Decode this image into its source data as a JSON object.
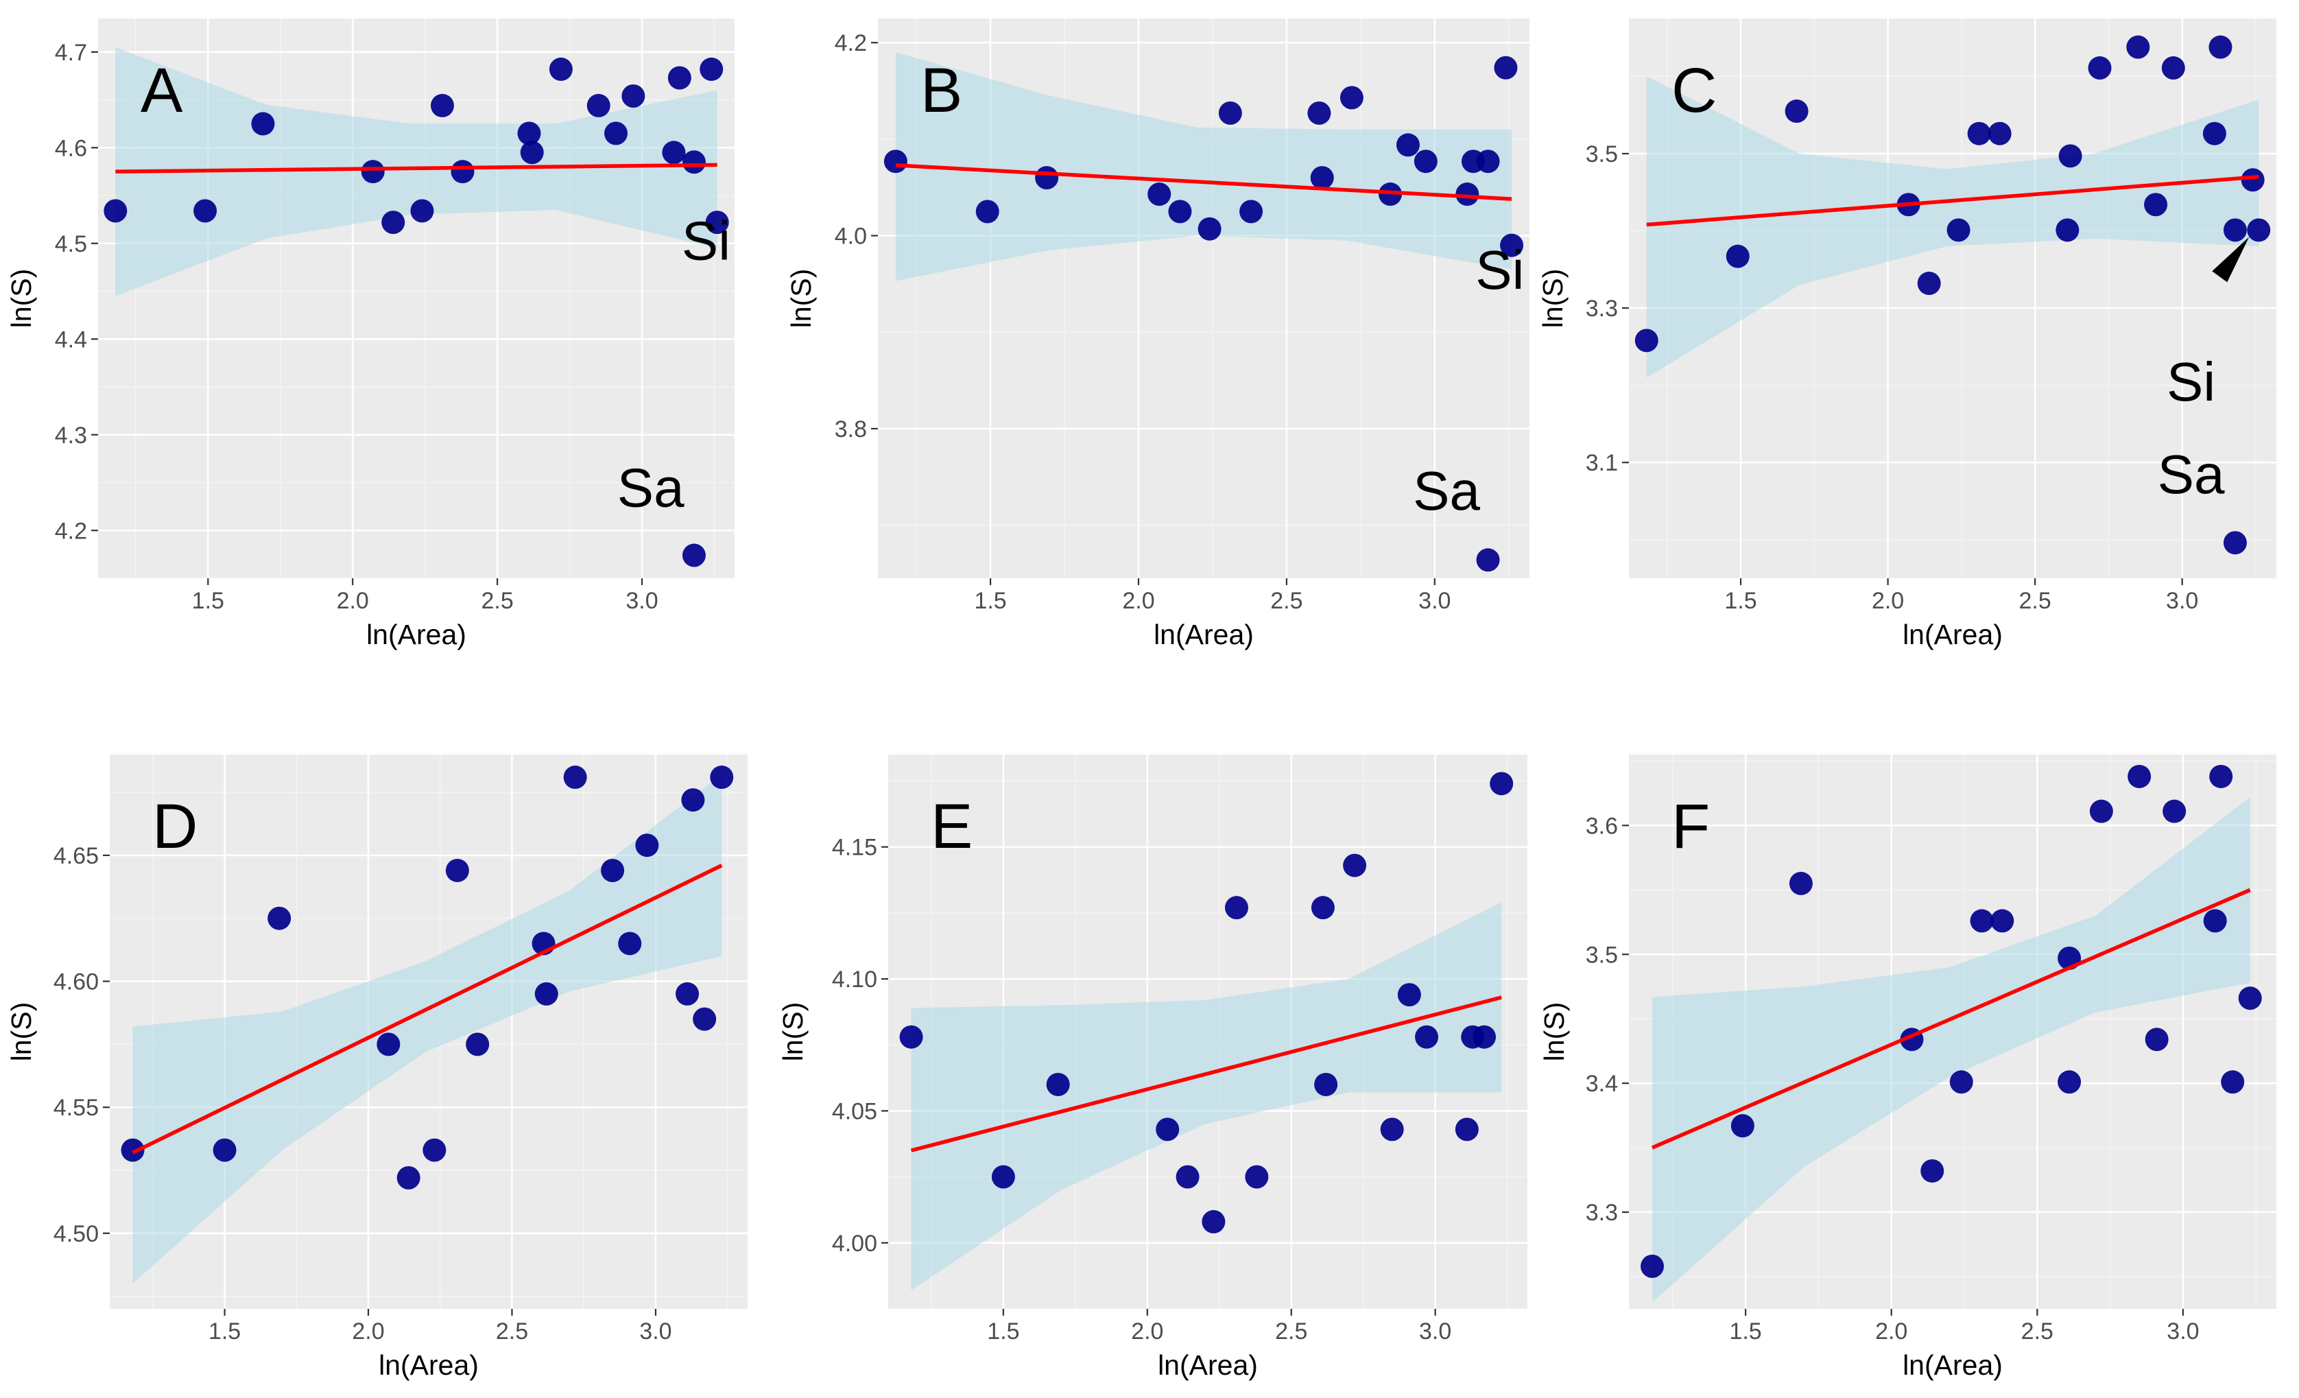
{
  "chart_data": [
    {
      "type": "scatter",
      "panel_label": "A",
      "xlabel": "ln(Area)",
      "ylabel": "ln(S)",
      "xlim": [
        1.12,
        3.32
      ],
      "ylim": [
        4.15,
        4.735
      ],
      "xticks": [
        "1.5",
        "2.0",
        "2.5",
        "3.0"
      ],
      "yticks": [
        "4.2",
        "4.3",
        "4.4",
        "4.5",
        "4.6",
        "4.7"
      ],
      "x": [
        1.18,
        1.49,
        1.69,
        2.07,
        2.14,
        2.24,
        2.31,
        2.38,
        2.61,
        2.62,
        2.72,
        2.85,
        2.91,
        2.97,
        3.11,
        3.13,
        3.18,
        3.24,
        3.26,
        3.18
      ],
      "y": [
        4.534,
        4.534,
        4.625,
        4.575,
        4.522,
        4.534,
        4.644,
        4.575,
        4.615,
        4.595,
        4.682,
        4.644,
        4.615,
        4.654,
        4.595,
        4.673,
        4.585,
        4.682,
        4.522,
        4.174
      ],
      "fit": {
        "x": [
          1.18,
          3.26
        ],
        "y": [
          4.575,
          4.582
        ]
      },
      "band": {
        "x": [
          1.18,
          1.7,
          2.2,
          2.7,
          3.26
        ],
        "lower": [
          4.445,
          4.505,
          4.53,
          4.535,
          4.495
        ],
        "upper": [
          4.705,
          4.645,
          4.625,
          4.625,
          4.66
        ]
      },
      "annotations": [
        {
          "text": "Si",
          "x": 3.25,
          "y": 4.483
        },
        {
          "text": "Sa",
          "x": 3.03,
          "y": 4.225
        }
      ]
    },
    {
      "type": "scatter",
      "panel_label": "B",
      "xlabel": "ln(Area)",
      "ylabel": "ln(S)",
      "xlim": [
        1.12,
        3.32
      ],
      "ylim": [
        3.645,
        4.225
      ],
      "xticks": [
        "1.5",
        "2.0",
        "2.5",
        "3.0"
      ],
      "yticks": [
        "3.8",
        "4.0",
        "4.2"
      ],
      "x": [
        1.18,
        1.49,
        1.69,
        2.07,
        2.14,
        2.24,
        2.31,
        2.38,
        2.61,
        2.62,
        2.72,
        2.85,
        2.91,
        2.97,
        3.11,
        3.13,
        3.18,
        3.24,
        3.26,
        3.18
      ],
      "y": [
        4.077,
        4.025,
        4.06,
        4.043,
        4.025,
        4.007,
        4.127,
        4.025,
        4.127,
        4.06,
        4.143,
        4.043,
        4.094,
        4.077,
        4.043,
        4.077,
        4.077,
        4.174,
        3.99,
        3.664
      ],
      "fit": {
        "x": [
          1.18,
          3.26
        ],
        "y": [
          4.073,
          4.038
        ]
      },
      "band": {
        "x": [
          1.18,
          1.7,
          2.2,
          2.7,
          3.26
        ],
        "lower": [
          3.953,
          3.985,
          4.0,
          3.995,
          3.965
        ],
        "upper": [
          4.19,
          4.145,
          4.112,
          4.11,
          4.11
        ]
      },
      "annotations": [
        {
          "text": "Si",
          "x": 3.22,
          "y": 3.945
        },
        {
          "text": "Sa",
          "x": 3.04,
          "y": 3.716
        }
      ]
    },
    {
      "type": "scatter",
      "panel_label": "C",
      "xlabel": "ln(Area)",
      "ylabel": "ln(S)",
      "xlim": [
        1.12,
        3.32
      ],
      "ylim": [
        2.95,
        3.675
      ],
      "xticks": [
        "1.5",
        "2.0",
        "2.5",
        "3.0"
      ],
      "yticks": [
        "3.1",
        "3.3",
        "3.5"
      ],
      "x": [
        1.18,
        1.49,
        1.69,
        2.07,
        2.14,
        2.24,
        2.31,
        2.38,
        2.61,
        2.62,
        2.72,
        2.85,
        2.91,
        2.97,
        3.11,
        3.13,
        3.18,
        3.24,
        3.26,
        3.18
      ],
      "y": [
        3.258,
        3.367,
        3.555,
        3.434,
        3.332,
        3.401,
        3.526,
        3.526,
        3.401,
        3.497,
        3.611,
        3.638,
        3.434,
        3.611,
        3.526,
        3.638,
        3.401,
        3.466,
        3.401,
        2.996
      ],
      "fit": {
        "x": [
          1.18,
          3.26
        ],
        "y": [
          3.408,
          3.47
        ]
      },
      "band": {
        "x": [
          1.18,
          1.7,
          2.2,
          2.7,
          3.26
        ],
        "lower": [
          3.21,
          3.33,
          3.38,
          3.39,
          3.38
        ],
        "upper": [
          3.6,
          3.5,
          3.48,
          3.5,
          3.57
        ]
      },
      "annotations": [
        {
          "text": "Si",
          "x": 3.03,
          "y": 3.18
        },
        {
          "text": "Sa",
          "x": 3.03,
          "y": 3.06
        }
      ]
    },
    {
      "type": "scatter",
      "panel_label": "D",
      "xlabel": "ln(Area)",
      "ylabel": "ln(S)",
      "xlim": [
        1.1,
        3.32
      ],
      "ylim": [
        4.47,
        4.69
      ],
      "xticks": [
        "1.5",
        "2.0",
        "2.5",
        "3.0"
      ],
      "yticks": [
        "4.50",
        "4.55",
        "4.60",
        "4.65"
      ],
      "x": [
        1.18,
        1.5,
        1.69,
        2.07,
        2.14,
        2.23,
        2.31,
        2.38,
        2.61,
        2.62,
        2.72,
        2.85,
        2.91,
        2.97,
        3.11,
        3.13,
        3.17,
        3.23
      ],
      "y": [
        4.533,
        4.533,
        4.625,
        4.575,
        4.522,
        4.533,
        4.644,
        4.575,
        4.615,
        4.595,
        4.681,
        4.644,
        4.615,
        4.654,
        4.595,
        4.672,
        4.585,
        4.681
      ],
      "fit": {
        "x": [
          1.18,
          3.23
        ],
        "y": [
          4.532,
          4.646
        ]
      },
      "band": {
        "x": [
          1.18,
          1.7,
          2.2,
          2.7,
          3.23
        ],
        "lower": [
          4.48,
          4.533,
          4.572,
          4.596,
          4.61
        ],
        "upper": [
          4.582,
          4.588,
          4.608,
          4.636,
          4.682
        ]
      },
      "annotations": []
    },
    {
      "type": "scatter",
      "panel_label": "E",
      "xlabel": "ln(Area)",
      "ylabel": "ln(S)",
      "xlim": [
        1.1,
        3.32
      ],
      "ylim": [
        3.975,
        4.185
      ],
      "xticks": [
        "1.5",
        "2.0",
        "2.5",
        "3.0"
      ],
      "yticks": [
        "4.00",
        "4.05",
        "4.10",
        "4.15"
      ],
      "x": [
        1.18,
        1.5,
        1.69,
        2.07,
        2.14,
        2.23,
        2.31,
        2.38,
        2.61,
        2.62,
        2.72,
        2.85,
        2.91,
        2.97,
        3.11,
        3.13,
        3.17,
        3.23
      ],
      "y": [
        4.078,
        4.025,
        4.06,
        4.043,
        4.025,
        4.008,
        4.127,
        4.025,
        4.127,
        4.06,
        4.143,
        4.043,
        4.094,
        4.078,
        4.043,
        4.078,
        4.078,
        4.174
      ],
      "fit": {
        "x": [
          1.18,
          3.23
        ],
        "y": [
          4.035,
          4.093
        ]
      },
      "band": {
        "x": [
          1.18,
          1.7,
          2.2,
          2.7,
          3.23
        ],
        "lower": [
          3.982,
          4.02,
          4.045,
          4.057,
          4.057
        ],
        "upper": [
          4.089,
          4.09,
          4.092,
          4.1,
          4.129
        ]
      },
      "annotations": []
    },
    {
      "type": "scatter",
      "panel_label": "F",
      "xlabel": "ln(Area)",
      "ylabel": "ln(S)",
      "xlim": [
        1.1,
        3.32
      ],
      "ylim": [
        3.225,
        3.655
      ],
      "xticks": [
        "1.5",
        "2.0",
        "2.5",
        "3.0"
      ],
      "yticks": [
        "3.3",
        "3.4",
        "3.5",
        "3.6"
      ],
      "x": [
        1.18,
        1.49,
        1.69,
        2.07,
        2.14,
        2.24,
        2.31,
        2.38,
        2.61,
        2.61,
        2.72,
        2.85,
        2.91,
        2.97,
        3.11,
        3.13,
        3.17,
        3.23
      ],
      "y": [
        3.258,
        3.367,
        3.555,
        3.434,
        3.332,
        3.401,
        3.526,
        3.526,
        3.401,
        3.497,
        3.611,
        3.638,
        3.434,
        3.611,
        3.526,
        3.638,
        3.401,
        3.466
      ],
      "fit": {
        "x": [
          1.18,
          3.23
        ],
        "y": [
          3.35,
          3.55
        ]
      },
      "band": {
        "x": [
          1.18,
          1.7,
          2.2,
          2.7,
          3.23
        ],
        "lower": [
          3.23,
          3.335,
          3.405,
          3.455,
          3.478
        ],
        "upper": [
          3.467,
          3.475,
          3.49,
          3.53,
          3.622
        ]
      },
      "annotations": []
    }
  ]
}
